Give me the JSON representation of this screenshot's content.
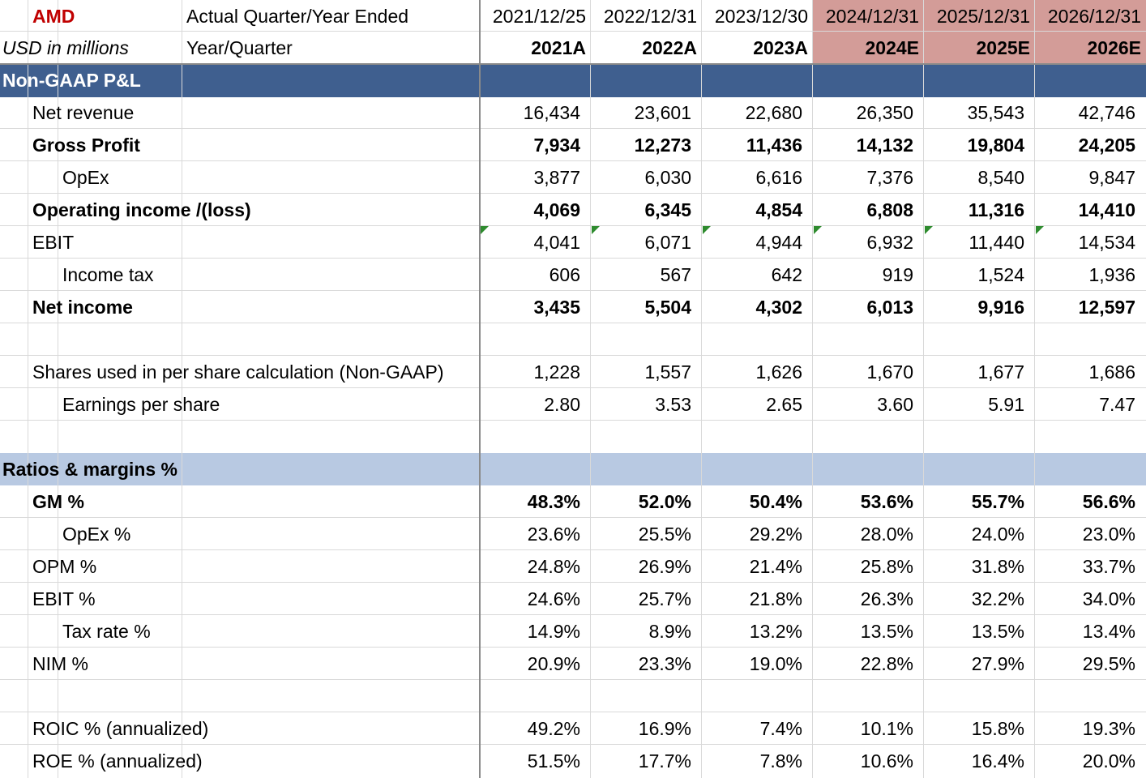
{
  "header": {
    "ticker": "AMD",
    "unit_label": "USD in millions",
    "period_label": "Actual Quarter/Year Ended",
    "year_quarter_label": "Year/Quarter",
    "colors": {
      "ticker": "#c00000",
      "estimate_header_bg": "#d39c98",
      "section_dark": "#3f5f8f",
      "section_light": "#b8c9e2",
      "comment_marker": "#2e8b2e"
    },
    "columns": [
      {
        "date": "2021/12/25",
        "label": "2021A"
      },
      {
        "date": "2022/12/31",
        "label": "2022A"
      },
      {
        "date": "2023/12/30",
        "label": "2023A"
      },
      {
        "date": "2024/12/31",
        "label": "2024E"
      },
      {
        "date": "2025/12/31",
        "label": "2025E"
      },
      {
        "date": "2026/12/31",
        "label": "2026E"
      }
    ]
  },
  "sections": {
    "pnl_title": "Non-GAAP P&L",
    "ratios_title": "Ratios & margins %"
  },
  "rows": {
    "net_revenue": {
      "label": "Net revenue",
      "values": [
        "16,434",
        "23,601",
        "22,680",
        "26,350",
        "35,543",
        "42,746"
      ]
    },
    "gross_profit": {
      "label": "Gross Profit",
      "values": [
        "7,934",
        "12,273",
        "11,436",
        "14,132",
        "19,804",
        "24,205"
      ]
    },
    "opex": {
      "label": "OpEx",
      "values": [
        "3,877",
        "6,030",
        "6,616",
        "7,376",
        "8,540",
        "9,847"
      ]
    },
    "operating_income": {
      "label": "Operating income /(loss)",
      "values": [
        "4,069",
        "6,345",
        "4,854",
        "6,808",
        "11,316",
        "14,410"
      ]
    },
    "ebit": {
      "label": "EBIT",
      "values": [
        "4,041",
        "6,071",
        "4,944",
        "6,932",
        "11,440",
        "14,534"
      ]
    },
    "income_tax": {
      "label": "Income tax",
      "values": [
        "606",
        "567",
        "642",
        "919",
        "1,524",
        "1,936"
      ]
    },
    "net_income": {
      "label": "Net income",
      "values": [
        "3,435",
        "5,504",
        "4,302",
        "6,013",
        "9,916",
        "12,597"
      ]
    },
    "shares": {
      "label": "Shares used in per share calculation (Non-GAAP)",
      "values": [
        "1,228",
        "1,557",
        "1,626",
        "1,670",
        "1,677",
        "1,686"
      ]
    },
    "eps": {
      "label": "Earnings per share",
      "values": [
        "2.80",
        "3.53",
        "2.65",
        "3.60",
        "5.91",
        "7.47"
      ]
    },
    "gm": {
      "label": "GM %",
      "values": [
        "48.3%",
        "52.0%",
        "50.4%",
        "53.6%",
        "55.7%",
        "56.6%"
      ]
    },
    "opex_pct": {
      "label": "OpEx %",
      "values": [
        "23.6%",
        "25.5%",
        "29.2%",
        "28.0%",
        "24.0%",
        "23.0%"
      ]
    },
    "opm": {
      "label": "OPM %",
      "values": [
        "24.8%",
        "26.9%",
        "21.4%",
        "25.8%",
        "31.8%",
        "33.7%"
      ]
    },
    "ebit_pct": {
      "label": "EBIT %",
      "values": [
        "24.6%",
        "25.7%",
        "21.8%",
        "26.3%",
        "32.2%",
        "34.0%"
      ]
    },
    "tax_rate": {
      "label": "Tax rate %",
      "values": [
        "14.9%",
        "8.9%",
        "13.2%",
        "13.5%",
        "13.5%",
        "13.4%"
      ]
    },
    "nim": {
      "label": "NIM %",
      "values": [
        "20.9%",
        "23.3%",
        "19.0%",
        "22.8%",
        "27.9%",
        "29.5%"
      ]
    },
    "roic": {
      "label": "ROIC % (annualized)",
      "values": [
        "49.2%",
        "16.9%",
        "7.4%",
        "10.1%",
        "15.8%",
        "19.3%"
      ]
    },
    "roe": {
      "label": "ROE % (annualized)",
      "values": [
        "51.5%",
        "17.7%",
        "7.8%",
        "10.6%",
        "16.4%",
        "20.0%"
      ]
    }
  }
}
